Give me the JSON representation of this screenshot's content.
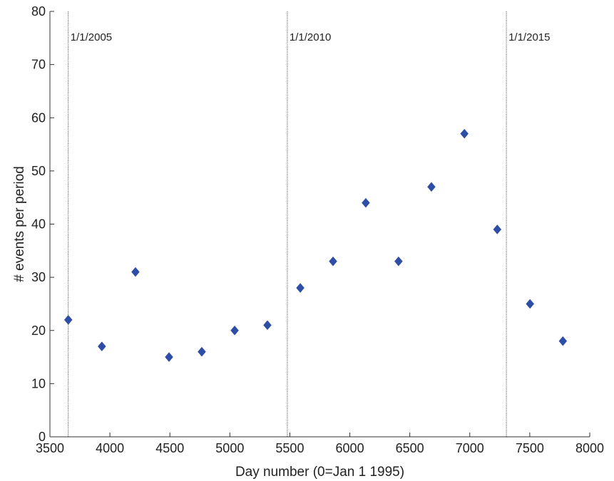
{
  "chart_data": {
    "type": "scatter",
    "title": "",
    "xlabel": "Day number (0=Jan 1 1995)",
    "ylabel": "# events per period",
    "xlim": [
      3500,
      8000
    ],
    "ylim": [
      0,
      80
    ],
    "x_ticks": [
      3500,
      4000,
      4500,
      5000,
      5500,
      6000,
      6500,
      7000,
      7500,
      8000
    ],
    "y_ticks": [
      0,
      10,
      20,
      30,
      40,
      50,
      60,
      70,
      80
    ],
    "grid": false,
    "legend": "none",
    "marker": "diamond",
    "series": [
      {
        "color": "#2E4DA7",
        "points": [
          {
            "x": 3653,
            "y": 22
          },
          {
            "x": 3933,
            "y": 17
          },
          {
            "x": 4213,
            "y": 31
          },
          {
            "x": 4493,
            "y": 15
          },
          {
            "x": 4766,
            "y": 16
          },
          {
            "x": 5040,
            "y": 20
          },
          {
            "x": 5313,
            "y": 21
          },
          {
            "x": 5587,
            "y": 28
          },
          {
            "x": 5860,
            "y": 33
          },
          {
            "x": 6133,
            "y": 44
          },
          {
            "x": 6406,
            "y": 33
          },
          {
            "x": 6680,
            "y": 47
          },
          {
            "x": 6955,
            "y": 57
          },
          {
            "x": 7229,
            "y": 39
          },
          {
            "x": 7502,
            "y": 25
          },
          {
            "x": 7776,
            "y": 18
          }
        ]
      }
    ],
    "reference_lines": [
      {
        "x": 3653,
        "label": "1/1/2005"
      },
      {
        "x": 5479,
        "label": "1/1/2010"
      },
      {
        "x": 7305,
        "label": "1/1/2015"
      }
    ]
  }
}
